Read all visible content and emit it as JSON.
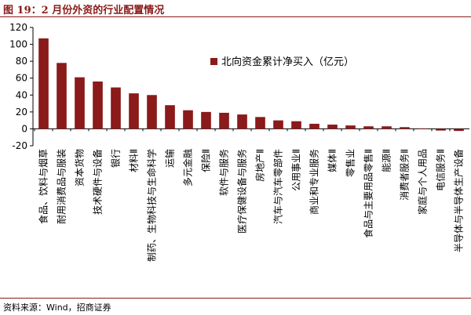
{
  "figure_title": "图 19：2 月份外资的行业配置情况",
  "source": "资料来源：Wind，招商证券",
  "colors": {
    "bar": "#8B1A1A",
    "title": "#8B1A1A",
    "axis": "#000000"
  },
  "chart_data": {
    "type": "bar",
    "title": "",
    "xlabel": "",
    "ylabel": "",
    "ylim": [
      -20,
      120
    ],
    "yticks": [
      -20,
      0,
      20,
      40,
      60,
      80,
      100,
      120
    ],
    "grid": false,
    "legend_position": "top-right",
    "categories": [
      "食品、饮料与烟草",
      "耐用消费品与服装",
      "资本货物",
      "技术硬件与设备",
      "银行",
      "材料Ⅱ",
      "制药、生物科技与生命科学",
      "运输",
      "多元金融",
      "保险Ⅱ",
      "软件与服务",
      "医疗保健设备与服务",
      "房地产Ⅱ",
      "汽车与汽车零部件",
      "公用事业Ⅱ",
      "商业和专业服务",
      "媒体Ⅱ",
      "零售业",
      "食品与主要用品零售Ⅱ",
      "能源Ⅱ",
      "消费者服务Ⅱ",
      "家庭与个人用品",
      "电信服务Ⅱ",
      "半导体与半导体生产设备"
    ],
    "series": [
      {
        "name": "北向资金累计净买入（亿元）",
        "values": [
          107,
          78,
          61,
          56,
          49,
          42,
          40,
          28,
          22,
          20,
          19,
          17,
          14,
          10,
          9,
          6,
          5,
          4,
          3,
          3,
          2,
          0.5,
          -2,
          -2.5
        ]
      }
    ]
  }
}
